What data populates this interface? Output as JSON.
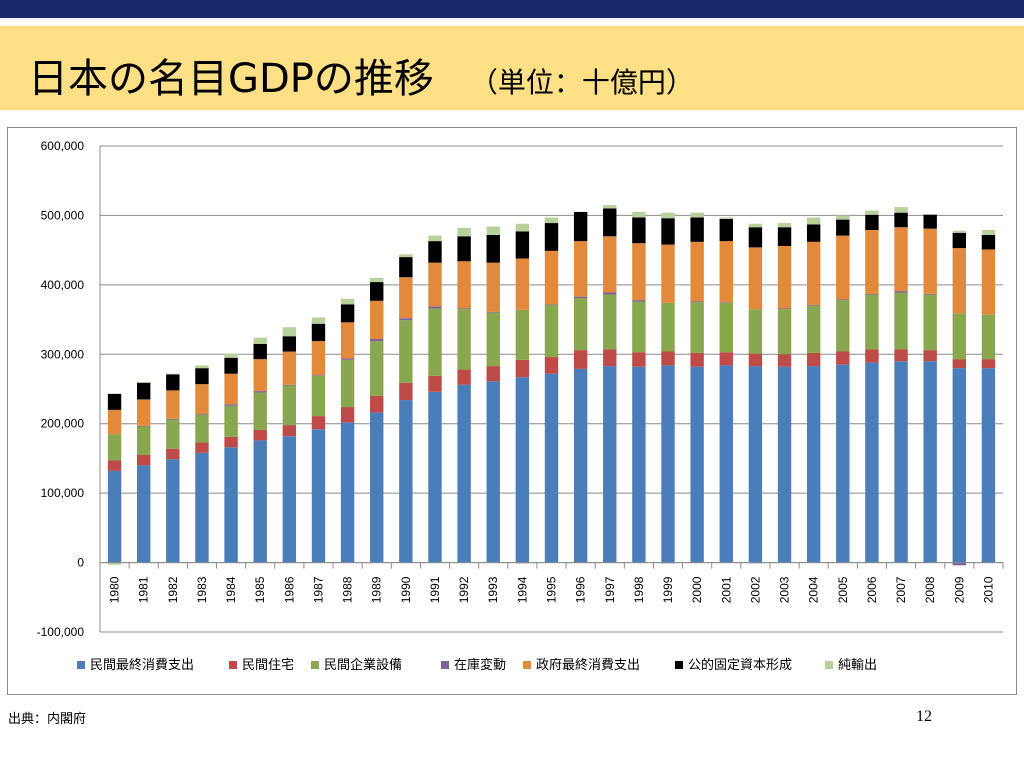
{
  "slide": {
    "title": "日本の名目GDPの推移",
    "unit": "（単位：十億円）",
    "source": "出典：内閣府",
    "page_number": "12"
  },
  "chart_data": {
    "type": "bar",
    "stacked": true,
    "categories": [
      "1980",
      "1981",
      "1982",
      "1983",
      "1984",
      "1985",
      "1986",
      "1987",
      "1988",
      "1989",
      "1990",
      "1991",
      "1992",
      "1993",
      "1994",
      "1995",
      "1996",
      "1997",
      "1998",
      "1999",
      "2000",
      "2001",
      "2002",
      "2003",
      "2004",
      "2005",
      "2006",
      "2007",
      "2008",
      "2009",
      "2010"
    ],
    "y_ticks": [
      "600,000",
      "500,000",
      "400,000",
      "300,000",
      "200,000",
      "100,000",
      "0",
      "-100,000"
    ],
    "ylim": [
      -100000,
      600000
    ],
    "grid": true,
    "legend_position": "bottom",
    "series": [
      {
        "name": "民間最終消費支出",
        "color": "#4a7ebb",
        "values": [
          132000,
          140000,
          149000,
          158000,
          166000,
          176000,
          182000,
          192000,
          202000,
          216000,
          234000,
          246000,
          256000,
          261000,
          267000,
          272000,
          279000,
          283000,
          282000,
          284000,
          282000,
          284000,
          283000,
          282000,
          283000,
          285000,
          288000,
          290000,
          290000,
          280000,
          280000
        ]
      },
      {
        "name": "民間住宅",
        "color": "#be4b48",
        "values": [
          15000,
          15000,
          15000,
          15000,
          15000,
          15000,
          16000,
          19000,
          22000,
          24000,
          25000,
          23000,
          22000,
          22000,
          25000,
          24000,
          27000,
          24000,
          21000,
          20000,
          20000,
          19000,
          18000,
          18000,
          19000,
          19000,
          19000,
          17000,
          16000,
          13000,
          13000
        ]
      },
      {
        "name": "民間企業設備",
        "color": "#88a74e",
        "values": [
          38000,
          41000,
          42000,
          40000,
          45000,
          54000,
          57000,
          58000,
          68000,
          79000,
          90000,
          97000,
          87000,
          77000,
          72000,
          75000,
          75000,
          79000,
          73000,
          70000,
          73000,
          71000,
          64000,
          65000,
          68000,
          74000,
          79000,
          82000,
          80000,
          66000,
          64000
        ]
      },
      {
        "name": "在庫変動",
        "color": "#7e649e",
        "values": [
          -1000,
          1000,
          1000,
          1000,
          2000,
          2000,
          1000,
          1000,
          2000,
          3000,
          3000,
          3000,
          1000,
          1000,
          -1000,
          1000,
          2000,
          3000,
          2000,
          -1000,
          1000,
          1000,
          -1000,
          1000,
          1000,
          1000,
          1000,
          2000,
          1000,
          -4000,
          0
        ]
      },
      {
        "name": "政府最終消費支出",
        "color": "#e2893c",
        "values": [
          35000,
          38000,
          41000,
          43000,
          44000,
          46000,
          48000,
          49000,
          52000,
          55000,
          59000,
          63000,
          68000,
          71000,
          74000,
          77000,
          80000,
          81000,
          82000,
          84000,
          86000,
          88000,
          89000,
          90000,
          91000,
          92000,
          92000,
          92000,
          94000,
          94000,
          94000
        ]
      },
      {
        "name": "公的固定資本形成",
        "color": "#000000",
        "values": [
          23000,
          24000,
          23000,
          23000,
          23000,
          22000,
          22000,
          25000,
          26000,
          27000,
          29000,
          31000,
          36000,
          40000,
          39000,
          40000,
          42000,
          40000,
          37000,
          38000,
          35000,
          32000,
          29000,
          27000,
          25000,
          23000,
          22000,
          21000,
          20000,
          22000,
          21000
        ]
      },
      {
        "name": "純輸出",
        "color": "#b7d19a",
        "values": [
          -2000,
          1000,
          1000,
          4000,
          6000,
          9000,
          13000,
          9000,
          8000,
          6000,
          4000,
          8000,
          12000,
          12000,
          11000,
          8000,
          0,
          5000,
          8000,
          8000,
          7000,
          2000,
          5000,
          6000,
          10000,
          6000,
          6000,
          8000,
          1000,
          3000,
          7000
        ]
      }
    ]
  }
}
